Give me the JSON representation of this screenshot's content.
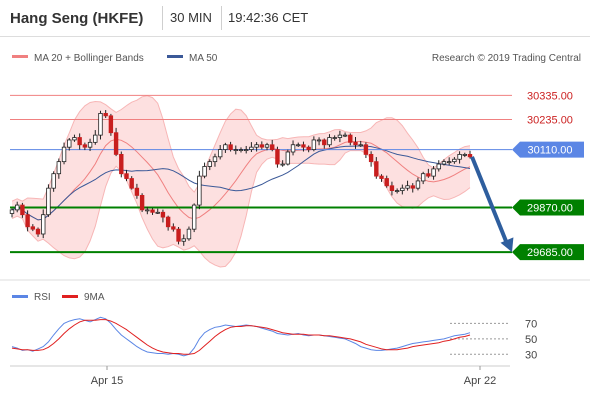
{
  "header": {
    "title": "Hang Seng (HKFE)",
    "timeframe": "30 MIN",
    "time": "19:42:36 CET"
  },
  "legend": {
    "ma20": "MA 20 + Bollinger Bands",
    "ma50": "MA 50",
    "credit": "Research © 2019 Trading Central",
    "rsi": "RSI",
    "rsi_ma": "9MA"
  },
  "colors": {
    "ma20": "#f08080",
    "ma50": "#3b5998",
    "bands_fill": "#fde0e0",
    "resistance": "#f08080",
    "pivot": "#5b86e5",
    "support": "#008000",
    "arrow": "#2e5e9e",
    "candle": "#c81e1e"
  },
  "chart_data": [
    {
      "type": "candlestick",
      "ylim": [
        29590,
        30440
      ],
      "x_tick_labels": [
        "Apr 15",
        "Apr 22"
      ],
      "levels": [
        {
          "value": 30335,
          "label": "30335.00",
          "kind": "resistance"
        },
        {
          "value": 30235,
          "label": "30235.00",
          "kind": "resistance"
        },
        {
          "value": 30110,
          "label": "30110.00",
          "kind": "pivot"
        },
        {
          "value": 29870,
          "label": "29870.00",
          "kind": "support"
        },
        {
          "value": 29685,
          "label": "29685.00",
          "kind": "support"
        }
      ],
      "closes": [
        29860,
        29880,
        29840,
        29790,
        29780,
        29760,
        29840,
        29950,
        30010,
        30060,
        30120,
        30150,
        30160,
        30130,
        30120,
        30140,
        30170,
        30260,
        30250,
        30180,
        30090,
        30010,
        29990,
        29950,
        29920,
        29860,
        29860,
        29850,
        29850,
        29830,
        29790,
        29780,
        29730,
        29740,
        29780,
        29880,
        30000,
        30040,
        30060,
        30080,
        30110,
        30130,
        30110,
        30110,
        30110,
        30110,
        30120,
        30130,
        30120,
        30130,
        30110,
        30050,
        30050,
        30100,
        30130,
        30130,
        30120,
        30110,
        30150,
        30150,
        30130,
        30160,
        30160,
        30170,
        30170,
        30140,
        30130,
        30130,
        30090,
        30060,
        30000,
        29990,
        29960,
        29940,
        29940,
        29950,
        29960,
        29950,
        29980,
        30010,
        30000,
        30030,
        30050,
        30060,
        30060,
        30070,
        30090,
        30090,
        30080
      ],
      "arrow_target": 29685
    },
    {
      "type": "line",
      "ylim": [
        20,
        90
      ],
      "y_ticks": [
        70,
        50,
        30
      ],
      "series": [
        {
          "name": "RSI",
          "values": [
            40,
            38,
            35,
            36,
            34,
            37,
            40,
            46,
            55,
            63,
            70,
            73,
            75,
            76,
            74,
            72,
            75,
            78,
            76,
            70,
            62,
            55,
            50,
            45,
            40,
            36,
            33,
            32,
            31,
            31,
            30,
            31,
            30,
            28,
            30,
            38,
            50,
            58,
            62,
            65,
            66,
            68,
            67,
            66,
            67,
            68,
            67,
            66,
            64,
            62,
            60,
            57,
            56,
            55,
            56,
            57,
            55,
            54,
            55,
            55,
            54,
            53,
            52,
            51,
            50,
            47,
            44,
            40,
            38,
            36,
            35,
            35,
            36,
            37,
            38,
            40,
            42,
            44,
            45,
            46,
            47,
            48,
            49,
            50,
            52,
            54,
            55,
            56,
            58
          ]
        },
        {
          "name": "9MA",
          "values": [
            38,
            37,
            36,
            36,
            35,
            35,
            36,
            39,
            44,
            50,
            57,
            63,
            68,
            72,
            74,
            74,
            74,
            75,
            75,
            73,
            70,
            66,
            62,
            57,
            52,
            47,
            42,
            38,
            35,
            33,
            32,
            31,
            31,
            30,
            30,
            31,
            35,
            41,
            47,
            53,
            58,
            62,
            65,
            66,
            66,
            67,
            67,
            66,
            65,
            64,
            62,
            60,
            58,
            57,
            56,
            56,
            56,
            55,
            55,
            55,
            54,
            54,
            53,
            52,
            51,
            50,
            48,
            46,
            43,
            41,
            39,
            37,
            36,
            36,
            36,
            37,
            38,
            40,
            41,
            42,
            43,
            44,
            45,
            47,
            48,
            50,
            52,
            53,
            55
          ]
        }
      ]
    }
  ]
}
